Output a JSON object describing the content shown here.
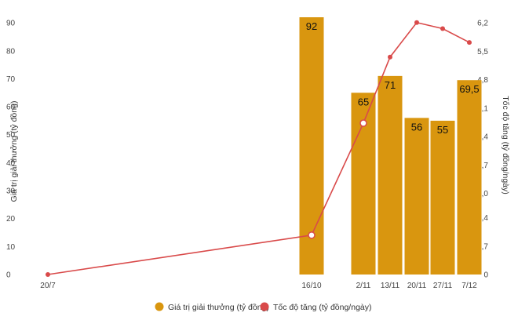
{
  "chart_data": {
    "type": "bar+line",
    "x_categories": [
      "20/7",
      "16/10",
      "2/11",
      "13/11",
      "20/11",
      "27/11",
      "7/12"
    ],
    "series": [
      {
        "name": "Giá trị giải thưởng (tỷ đồng)",
        "type": "bar",
        "axis": "left",
        "color": "#d9960f",
        "values": [
          null,
          92,
          65,
          71,
          56,
          55,
          69.5
        ],
        "labels": [
          "",
          "92",
          "65",
          "71",
          "56",
          "55",
          "69,5"
        ]
      },
      {
        "name": "Tốc độ tăng (tỷ đồng/ngày)",
        "type": "line",
        "axis": "right",
        "color": "#d94a4a",
        "values": [
          0,
          0.97,
          3.73,
          5.36,
          6.21,
          6.06,
          5.72
        ]
      }
    ],
    "y_left": {
      "label": "Giá trị giải thưởng (tỷ đồng)",
      "ticks": [
        "0",
        "10",
        "20",
        "30",
        "40",
        "50",
        "60",
        "70",
        "80",
        "90"
      ],
      "range": [
        0,
        92
      ]
    },
    "y_right": {
      "label": "Tốc độ tăng (tỷ đồng/ngày)",
      "ticks": [
        "0",
        "0,7",
        "1,4",
        "2,0",
        "2,7",
        "3,4",
        "4,1",
        "4,8",
        "5,5",
        "6,2"
      ],
      "range": [
        0,
        6.34
      ]
    },
    "grid": false,
    "legend_position": "bottom"
  }
}
